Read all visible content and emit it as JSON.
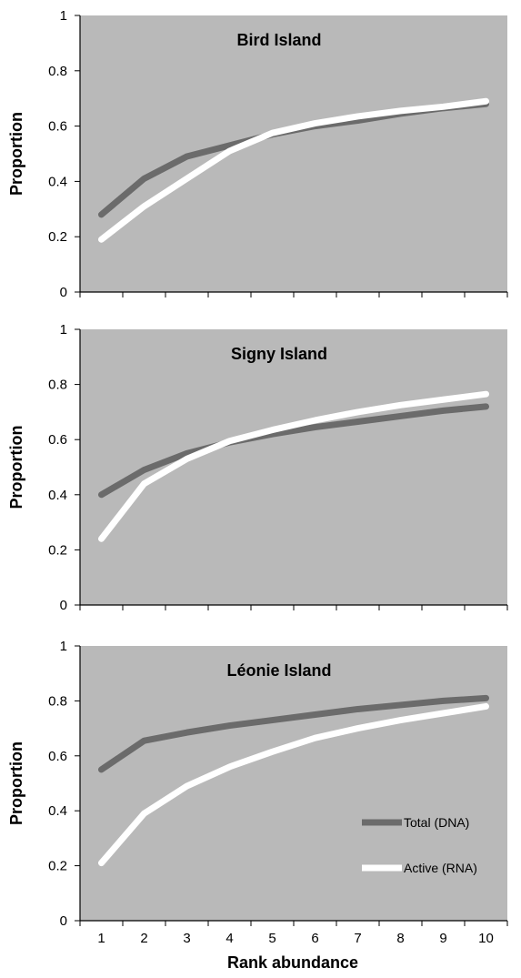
{
  "figure": {
    "xlabel": "Rank abundance"
  },
  "legend": {
    "total_label": "Total (DNA)",
    "active_label": "Active (RNA)"
  },
  "colors": {
    "plot_bg": "#b9b9b9",
    "total_line": "#6b6b6b",
    "active_line": "#ffffff",
    "axis": "#000000"
  },
  "chart_data": [
    {
      "type": "line",
      "title": "Bird Island",
      "xlabel": "",
      "ylabel": "Proportion",
      "x": [
        1,
        2,
        3,
        4,
        5,
        6,
        7,
        8,
        9,
        10
      ],
      "ylim": [
        0,
        1
      ],
      "yticks": [
        "0",
        "0.2",
        "0.4",
        "0.6",
        "0.8",
        "1"
      ],
      "xticks": [],
      "series": [
        {
          "name": "Total (DNA)",
          "values": [
            0.28,
            0.41,
            0.49,
            0.53,
            0.57,
            0.6,
            0.62,
            0.645,
            0.665,
            0.68
          ]
        },
        {
          "name": "Active (RNA)",
          "values": [
            0.19,
            0.31,
            0.41,
            0.51,
            0.575,
            0.61,
            0.635,
            0.655,
            0.67,
            0.69
          ]
        }
      ]
    },
    {
      "type": "line",
      "title": "Signy Island",
      "xlabel": "",
      "ylabel": "Proportion",
      "x": [
        1,
        2,
        3,
        4,
        5,
        6,
        7,
        8,
        9,
        10
      ],
      "ylim": [
        0,
        1
      ],
      "yticks": [
        "0",
        "0.2",
        "0.4",
        "0.6",
        "0.8",
        "1"
      ],
      "xticks": [],
      "series": [
        {
          "name": "Total (DNA)",
          "values": [
            0.4,
            0.49,
            0.55,
            0.59,
            0.62,
            0.645,
            0.665,
            0.685,
            0.705,
            0.72
          ]
        },
        {
          "name": "Active (RNA)",
          "values": [
            0.24,
            0.44,
            0.53,
            0.595,
            0.635,
            0.67,
            0.7,
            0.725,
            0.745,
            0.765
          ]
        }
      ]
    },
    {
      "type": "line",
      "title": "Léonie Island",
      "xlabel": "Rank abundance",
      "ylabel": "Proportion",
      "x": [
        1,
        2,
        3,
        4,
        5,
        6,
        7,
        8,
        9,
        10
      ],
      "ylim": [
        0,
        1
      ],
      "yticks": [
        "0",
        "0.2",
        "0.4",
        "0.6",
        "0.8",
        "1"
      ],
      "xticks": [
        "1",
        "2",
        "3",
        "4",
        "5",
        "6",
        "7",
        "8",
        "9",
        "10"
      ],
      "legend_position": "bottom-right",
      "series": [
        {
          "name": "Total (DNA)",
          "values": [
            0.55,
            0.655,
            0.685,
            0.71,
            0.73,
            0.75,
            0.77,
            0.785,
            0.8,
            0.81
          ]
        },
        {
          "name": "Active (RNA)",
          "values": [
            0.21,
            0.39,
            0.49,
            0.56,
            0.615,
            0.665,
            0.7,
            0.73,
            0.755,
            0.78
          ]
        }
      ]
    }
  ]
}
